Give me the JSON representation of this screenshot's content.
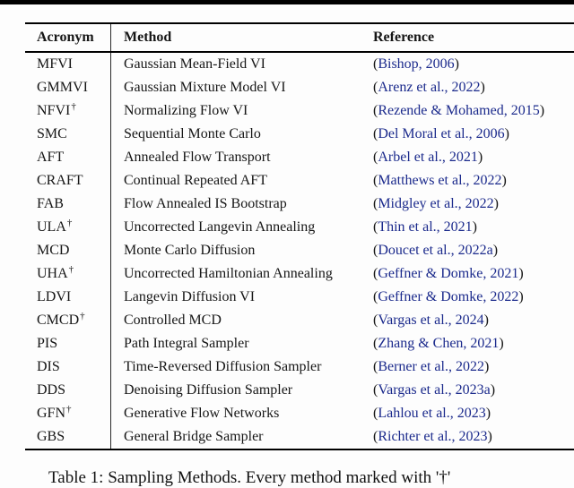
{
  "page": {
    "caption": "Table 1: Sampling Methods. Every method marked with '†'"
  },
  "colors": {
    "link_blue": "#1b2a8c",
    "rule_black": "#000000"
  },
  "table": {
    "headers": {
      "acronym": "Acronym",
      "method": "Method",
      "reference": "Reference"
    },
    "ref_open": "(",
    "ref_close": ")",
    "dagger_symbol": "†",
    "rows": [
      {
        "acronym": "MFVI",
        "dagger": false,
        "method": "Gaussian Mean-Field VI",
        "reference": "Bishop, 2006"
      },
      {
        "acronym": "GMMVI",
        "dagger": false,
        "method": "Gaussian Mixture Model VI",
        "reference": "Arenz et al., 2022"
      },
      {
        "acronym": "NFVI",
        "dagger": true,
        "method": "Normalizing Flow VI",
        "reference": "Rezende & Mohamed, 2015"
      },
      {
        "acronym": "SMC",
        "dagger": false,
        "method": "Sequential Monte Carlo",
        "reference": "Del Moral et al., 2006"
      },
      {
        "acronym": "AFT",
        "dagger": false,
        "method": "Annealed Flow Transport",
        "reference": "Arbel et al., 2021"
      },
      {
        "acronym": "CRAFT",
        "dagger": false,
        "method": "Continual Repeated AFT",
        "reference": "Matthews et al., 2022"
      },
      {
        "acronym": "FAB",
        "dagger": false,
        "method": "Flow Annealed IS Bootstrap",
        "reference": "Midgley et al., 2022"
      },
      {
        "acronym": "ULA",
        "dagger": true,
        "method": "Uncorrected Langevin Annealing",
        "reference": "Thin et al., 2021"
      },
      {
        "acronym": "MCD",
        "dagger": false,
        "method": "Monte Carlo Diffusion",
        "reference": "Doucet et al., 2022a"
      },
      {
        "acronym": "UHA",
        "dagger": true,
        "method": "Uncorrected Hamiltonian Annealing",
        "reference": "Geffner & Domke, 2021"
      },
      {
        "acronym": "LDVI",
        "dagger": false,
        "method": "Langevin Diffusion VI",
        "reference": "Geffner & Domke, 2022"
      },
      {
        "acronym": "CMCD",
        "dagger": true,
        "method": "Controlled MCD",
        "reference": "Vargas et al., 2024"
      },
      {
        "acronym": "PIS",
        "dagger": false,
        "method": "Path Integral Sampler",
        "reference": "Zhang & Chen, 2021"
      },
      {
        "acronym": "DIS",
        "dagger": false,
        "method": "Time-Reversed Diffusion Sampler",
        "reference": "Berner et al., 2022"
      },
      {
        "acronym": "DDS",
        "dagger": false,
        "method": "Denoising Diffusion Sampler",
        "reference": "Vargas et al., 2023a"
      },
      {
        "acronym": "GFN",
        "dagger": true,
        "method": "Generative Flow Networks",
        "reference": "Lahlou et al., 2023"
      },
      {
        "acronym": "GBS",
        "dagger": false,
        "method": "General Bridge Sampler",
        "reference": "Richter et al., 2023"
      }
    ]
  }
}
